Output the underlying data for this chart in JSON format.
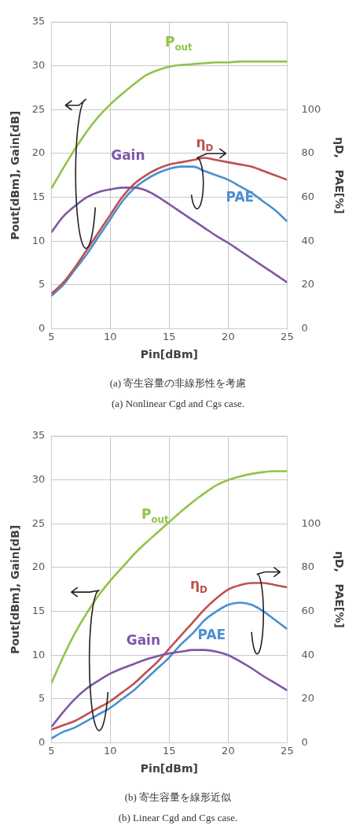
{
  "chart_data": [
    {
      "type": "line",
      "xlabel": "Pin[dBm]",
      "ylabel": "Pout[dBm], Gain[dB]",
      "y2label": "ηD,   PAE[%]",
      "x": [
        5,
        6,
        7,
        8,
        9,
        10,
        11,
        12,
        13,
        14,
        15,
        16,
        17,
        18,
        19,
        20,
        21,
        22,
        23,
        24,
        25
      ],
      "series": [
        {
          "name": "P$_{out}$",
          "color": "#92c348",
          "values": [
            16,
            18.3,
            20.5,
            22.5,
            24.2,
            25.6,
            26.8,
            27.9,
            28.9,
            29.5,
            29.9,
            30.1,
            30.2,
            30.3,
            30.4,
            30.4,
            30.5,
            30.5,
            30.5,
            30.5,
            30.5
          ]
        },
        {
          "name": "Gain",
          "color": "#7f57a8",
          "values": [
            11,
            12.8,
            14,
            15,
            15.6,
            15.9,
            16.1,
            16.1,
            15.8,
            15.1,
            14.2,
            13.3,
            12.4,
            11.5,
            10.6,
            9.8,
            8.9,
            8,
            7.1,
            6.2,
            5.3
          ]
        },
        {
          "name": "η$_{D}$",
          "color": "#c0504d",
          "axis": "y2",
          "values": [
            16,
            21,
            28,
            36,
            44,
            52,
            60,
            66,
            70,
            73,
            75,
            76,
            77,
            78,
            77,
            76,
            75,
            74,
            72,
            70,
            68
          ]
        },
        {
          "name": "PAE",
          "color": "#4a90cf",
          "axis": "y2",
          "values": [
            15,
            20,
            27,
            34,
            42,
            50,
            58,
            64,
            68,
            71,
            73,
            74,
            74,
            72,
            70,
            68,
            65,
            62,
            58,
            54,
            49
          ]
        }
      ],
      "xlim": [
        5,
        25
      ],
      "xticks": [
        5,
        10,
        15,
        20,
        25
      ],
      "ylim": [
        0,
        35
      ],
      "yticks": [
        0,
        5,
        10,
        15,
        20,
        25,
        30,
        35
      ],
      "y2lim": [
        0,
        140
      ],
      "y2ticks": [
        0,
        20,
        40,
        60,
        80,
        100
      ],
      "grid": true,
      "legend": false,
      "marker": "none",
      "annotations": [
        "(a)  寄生容量の非線形性を考慮",
        "(a) Nonlinear Cgd and Cgs case."
      ]
    },
    {
      "type": "line",
      "xlabel": "Pin[dBm]",
      "ylabel": "Pout[dBm], Gain[dB]",
      "y2label": "ηD,   PAE[%]",
      "x": [
        5,
        6,
        7,
        8,
        9,
        10,
        11,
        12,
        13,
        14,
        15,
        16,
        17,
        18,
        19,
        20,
        21,
        22,
        23,
        24,
        25
      ],
      "series": [
        {
          "name": "P$_{out}$",
          "color": "#92c348",
          "values": [
            6.8,
            9.8,
            12.5,
            14.8,
            16.8,
            18.5,
            20,
            21.5,
            22.8,
            24,
            25.2,
            26.4,
            27.5,
            28.5,
            29.4,
            30,
            30.4,
            30.7,
            30.9,
            31,
            31
          ]
        },
        {
          "name": "Gain",
          "color": "#7f57a8",
          "values": [
            1.8,
            3.5,
            5,
            6.2,
            7.1,
            7.9,
            8.5,
            9,
            9.5,
            9.9,
            10.2,
            10.4,
            10.6,
            10.6,
            10.4,
            10,
            9.3,
            8.5,
            7.6,
            6.8,
            6
          ]
        },
        {
          "name": "η$_{D}$",
          "color": "#c0504d",
          "axis": "y2",
          "values": [
            6,
            8,
            10,
            13,
            16,
            19,
            23,
            27,
            32,
            37,
            43,
            49,
            55,
            61,
            66,
            70,
            72,
            73,
            73,
            72,
            71
          ]
        },
        {
          "name": "PAE",
          "color": "#4a90cf",
          "axis": "y2",
          "values": [
            2,
            5,
            7,
            10,
            13,
            16,
            20,
            24,
            29,
            34,
            39,
            45,
            50,
            56,
            60,
            63,
            64,
            63,
            60,
            56,
            52
          ]
        }
      ],
      "xlim": [
        5,
        25
      ],
      "xticks": [
        5,
        10,
        15,
        20,
        25
      ],
      "ylim": [
        0,
        35
      ],
      "yticks": [
        0,
        5,
        10,
        15,
        20,
        25,
        30,
        35
      ],
      "y2lim": [
        0,
        140
      ],
      "y2ticks": [
        0,
        20,
        40,
        60,
        80,
        100
      ],
      "grid": true,
      "legend": false,
      "marker": "none",
      "annotations": [
        "(b)  寄生容量を線形近似",
        "(b) Linear Cgd and Cgs case."
      ]
    }
  ]
}
